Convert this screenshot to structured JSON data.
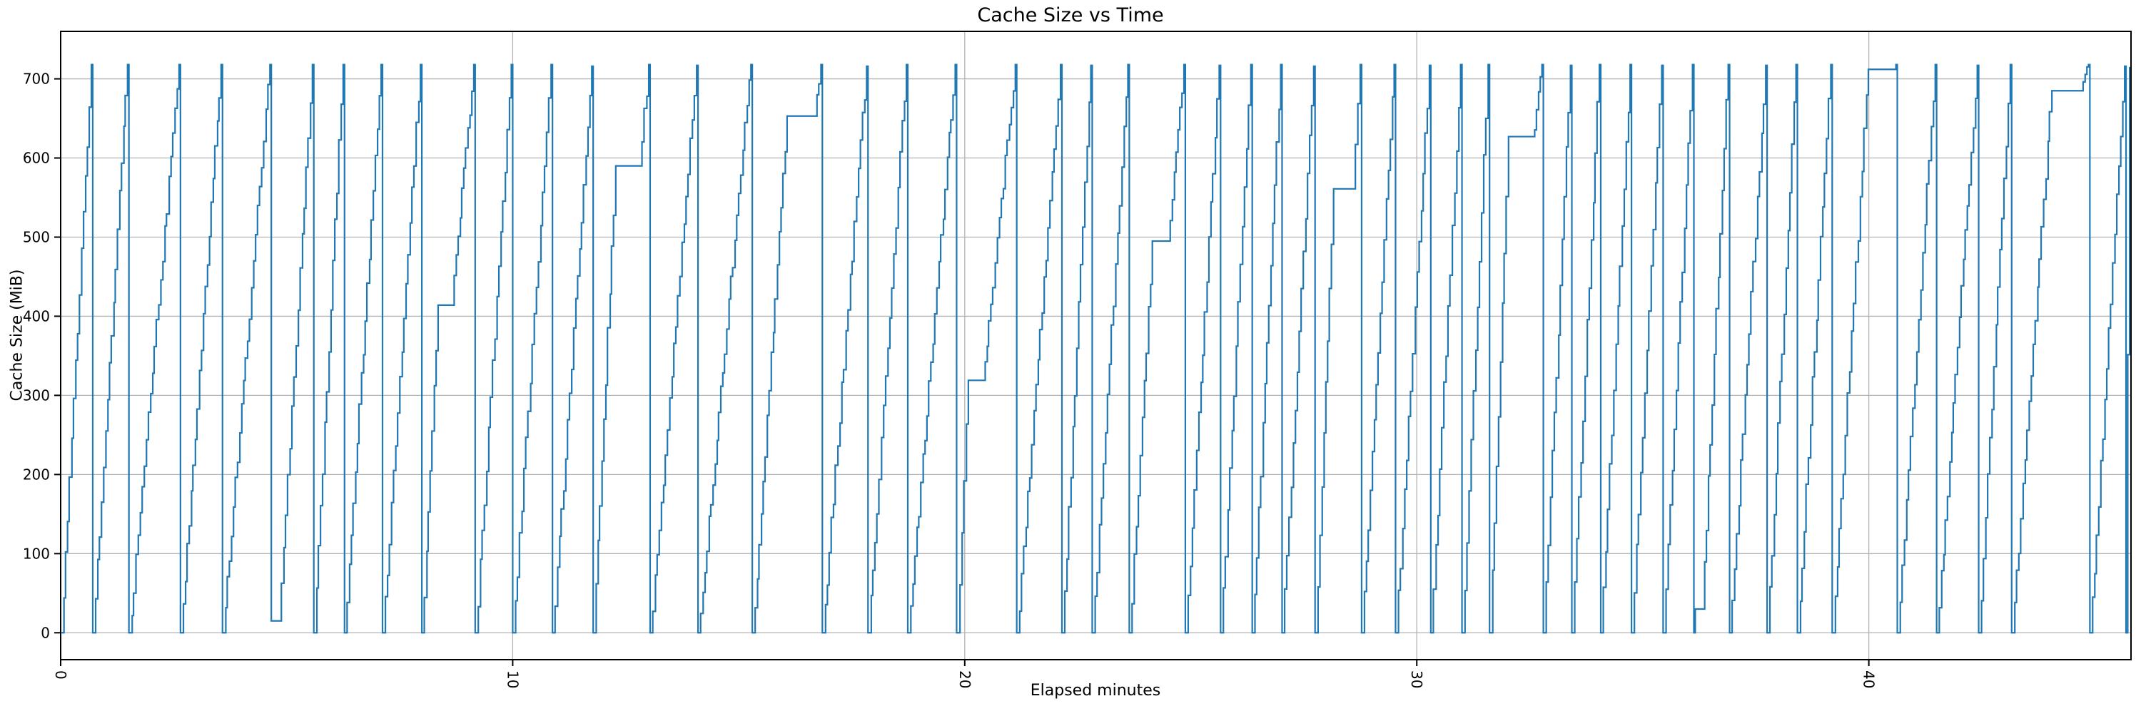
{
  "figure": {
    "background": "#ffffff",
    "line_color": "#1f77b4",
    "grid_color": "#b2b2b2",
    "spine_color": "#000000",
    "tick_color": "#000000"
  },
  "chart_data": {
    "type": "line",
    "title": "Cache Size vs Time",
    "xlabel": "Elapsed minutes",
    "ylabel": "Cache Size (MiB)",
    "unit": "MiB",
    "xlim": [
      0,
      45.8
    ],
    "ylim": [
      -34,
      760
    ],
    "xticks": [
      0,
      10,
      20,
      30,
      40
    ],
    "yticks": [
      0,
      100,
      200,
      300,
      400,
      500,
      600,
      700
    ],
    "xtick_rotation": 90,
    "grid": true,
    "legend": "none",
    "series_name": "cache size (MiB) vs elapsed minutes",
    "description": "Sawtooth pattern: cache repeatedly fills from 0 to ~718 MiB in stair-step rises of ~0.6-1.7 minutes, then instantly resets to 0. Some rises pause at intermediate plateaus.",
    "peak_mib": 718,
    "teeth": [
      {
        "s": 0.02,
        "e": 0.71,
        "p": 718
      },
      {
        "s": 0.73,
        "e": 1.51,
        "p": 718
      },
      {
        "s": 1.53,
        "e": 2.65,
        "p": 718
      },
      {
        "s": 2.67,
        "e": 3.58,
        "p": 718
      },
      {
        "s": 3.6,
        "e": 4.66,
        "p": 718
      },
      {
        "s": 4.66,
        "e": 5.6,
        "p": 718,
        "v0": 15,
        "fl": [
          [
            4.66,
            4.84,
            15
          ]
        ]
      },
      {
        "s": 5.62,
        "e": 6.28,
        "p": 718
      },
      {
        "s": 6.3,
        "e": 7.12,
        "p": 718
      },
      {
        "s": 7.14,
        "e": 7.99,
        "p": 718
      },
      {
        "s": 8.01,
        "e": 9.17,
        "p": 718,
        "fl": [
          [
            8.35,
            8.66,
            414
          ]
        ]
      },
      {
        "s": 9.19,
        "e": 10.0,
        "p": 718
      },
      {
        "s": 10.02,
        "e": 10.88,
        "p": 718
      },
      {
        "s": 10.9,
        "e": 11.78,
        "p": 716
      },
      {
        "s": 11.8,
        "e": 13.04,
        "p": 718,
        "fl": [
          [
            12.28,
            12.82,
            590
          ]
        ]
      },
      {
        "s": 13.06,
        "e": 14.1,
        "p": 717
      },
      {
        "s": 14.12,
        "e": 15.3,
        "p": 718
      },
      {
        "s": 15.32,
        "e": 16.85,
        "p": 718,
        "fl": [
          [
            16.07,
            16.7,
            653
          ]
        ]
      },
      {
        "s": 16.87,
        "e": 17.86,
        "p": 716
      },
      {
        "s": 17.88,
        "e": 18.74,
        "p": 718
      },
      {
        "s": 18.76,
        "e": 19.82,
        "p": 718
      },
      {
        "s": 19.84,
        "e": 21.15,
        "p": 718,
        "fl": [
          [
            20.08,
            20.4,
            319
          ]
        ]
      },
      {
        "s": 21.17,
        "e": 22.15,
        "p": 718
      },
      {
        "s": 22.17,
        "e": 22.82,
        "p": 717
      },
      {
        "s": 22.84,
        "e": 23.64,
        "p": 718
      },
      {
        "s": 23.66,
        "e": 24.88,
        "p": 718,
        "fl": [
          [
            24.15,
            24.51,
            495
          ]
        ]
      },
      {
        "s": 24.9,
        "e": 25.66,
        "p": 717
      },
      {
        "s": 25.68,
        "e": 26.36,
        "p": 718
      },
      {
        "s": 26.38,
        "e": 27.02,
        "p": 718
      },
      {
        "s": 27.04,
        "e": 27.75,
        "p": 716
      },
      {
        "s": 27.77,
        "e": 28.78,
        "p": 718,
        "fl": [
          [
            28.16,
            28.6,
            561
          ]
        ]
      },
      {
        "s": 28.8,
        "e": 29.53,
        "p": 718
      },
      {
        "s": 29.55,
        "e": 30.31,
        "p": 717
      },
      {
        "s": 30.33,
        "e": 31.0,
        "p": 718
      },
      {
        "s": 31.02,
        "e": 31.61,
        "p": 718
      },
      {
        "s": 31.63,
        "e": 32.8,
        "p": 718,
        "fl": [
          [
            32.03,
            32.56,
            627
          ]
        ]
      },
      {
        "s": 32.82,
        "e": 33.43,
        "p": 717
      },
      {
        "s": 33.45,
        "e": 34.07,
        "p": 718
      },
      {
        "s": 34.09,
        "e": 34.75,
        "p": 718
      },
      {
        "s": 34.77,
        "e": 35.45,
        "p": 717
      },
      {
        "s": 35.47,
        "e": 36.13,
        "p": 718
      },
      {
        "s": 36.15,
        "e": 36.92,
        "p": 718,
        "fl": [
          [
            36.16,
            36.32,
            30
          ]
        ]
      },
      {
        "s": 36.94,
        "e": 37.75,
        "p": 717
      },
      {
        "s": 37.77,
        "e": 38.42,
        "p": 718
      },
      {
        "s": 38.44,
        "e": 39.19,
        "p": 718
      },
      {
        "s": 39.21,
        "e": 40.63,
        "p": 718,
        "fl": [
          [
            39.99,
            40.55,
            712
          ]
        ]
      },
      {
        "s": 40.65,
        "e": 41.5,
        "p": 718
      },
      {
        "s": 41.52,
        "e": 42.43,
        "p": 717
      },
      {
        "s": 42.45,
        "e": 43.16,
        "p": 718
      },
      {
        "s": 43.18,
        "e": 44.89,
        "p": 718,
        "fl": [
          [
            44.05,
            44.7,
            685
          ]
        ]
      },
      {
        "s": 44.91,
        "e": 45.69,
        "p": 716
      },
      {
        "s": 45.7,
        "e": 45.77,
        "p": 715,
        "partial": true
      }
    ]
  }
}
